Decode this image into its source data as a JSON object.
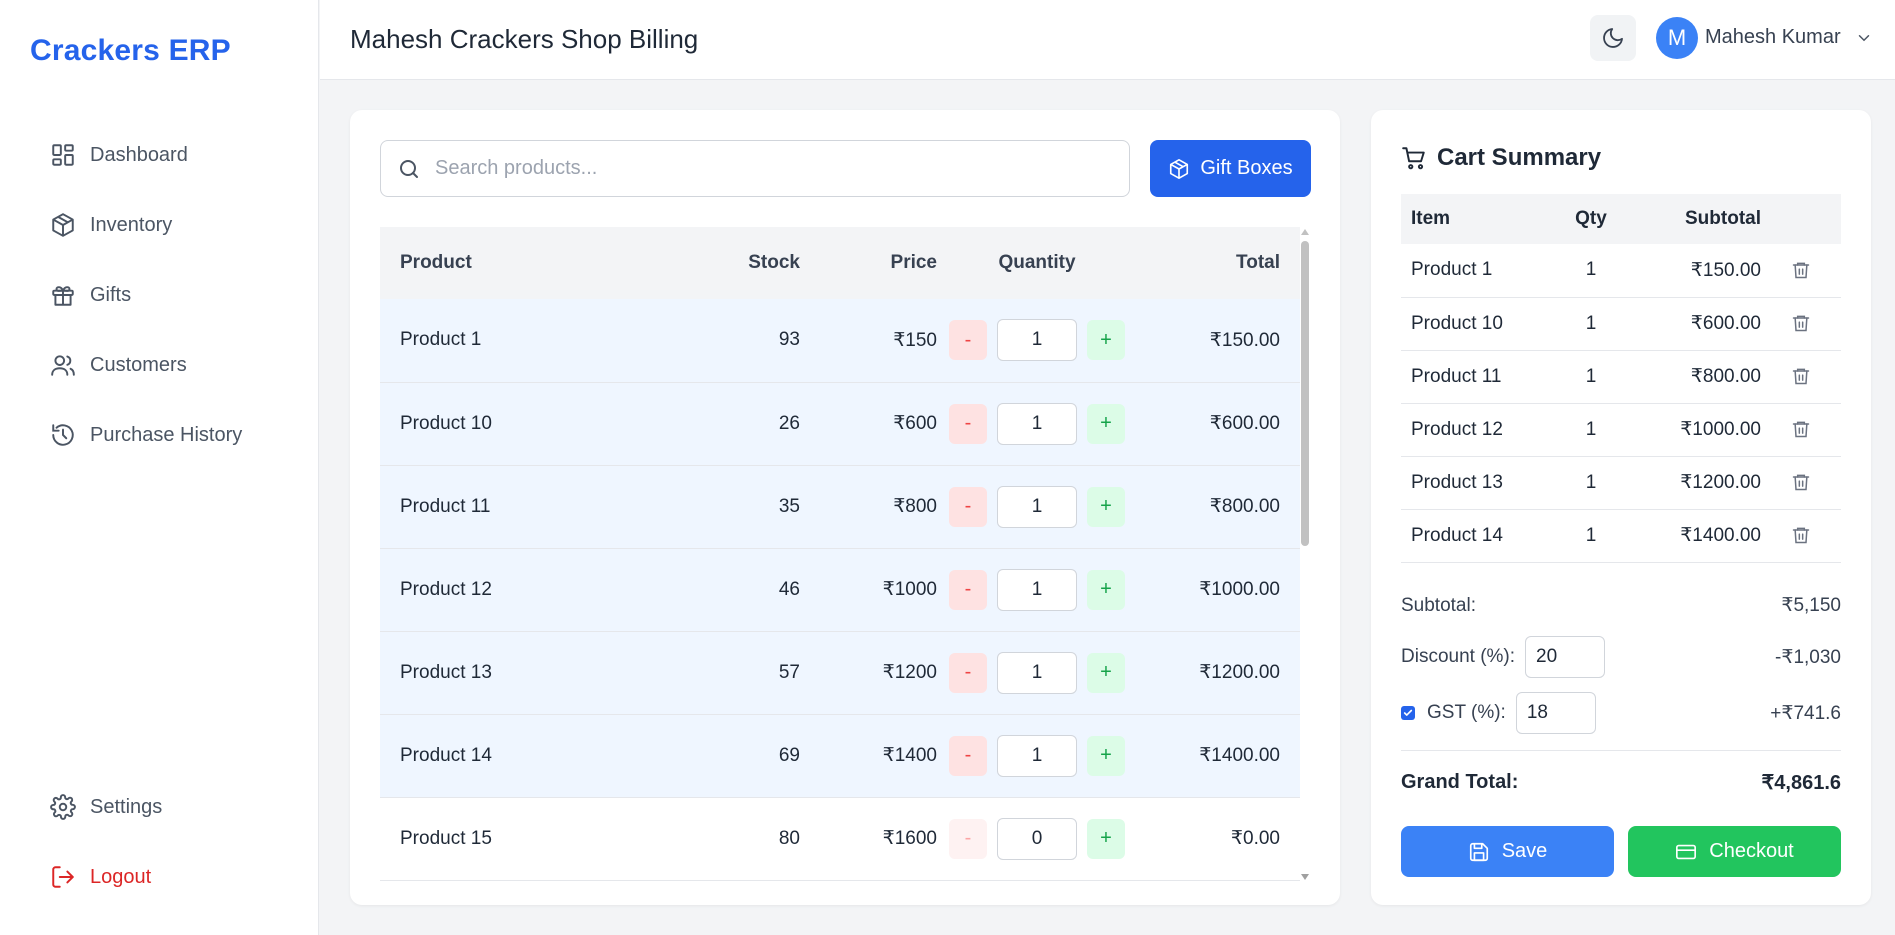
{
  "sidebar": {
    "brand": "Crackers ERP",
    "items": [
      {
        "label": "Dashboard",
        "icon": "dashboard-icon"
      },
      {
        "label": "Inventory",
        "icon": "box-icon"
      },
      {
        "label": "Gifts",
        "icon": "gift-icon"
      },
      {
        "label": "Customers",
        "icon": "users-icon"
      },
      {
        "label": "Purchase History",
        "icon": "history-icon"
      }
    ],
    "bottom": [
      {
        "label": "Settings",
        "icon": "gear-icon"
      },
      {
        "label": "Logout",
        "icon": "logout-icon"
      }
    ]
  },
  "header": {
    "title": "Mahesh Crackers Shop Billing",
    "avatar_initial": "M",
    "user_name": "Mahesh Kumar"
  },
  "products": {
    "search_placeholder": "Search products...",
    "gift_button": "Gift Boxes",
    "columns": [
      "Product",
      "Stock",
      "Price",
      "Quantity",
      "Total"
    ],
    "rows": [
      {
        "name": "Product 1",
        "stock": "93",
        "price": "₹150",
        "qty": "1",
        "total": "₹150.00",
        "in_cart": true
      },
      {
        "name": "Product 10",
        "stock": "26",
        "price": "₹600",
        "qty": "1",
        "total": "₹600.00",
        "in_cart": true
      },
      {
        "name": "Product 11",
        "stock": "35",
        "price": "₹800",
        "qty": "1",
        "total": "₹800.00",
        "in_cart": true
      },
      {
        "name": "Product 12",
        "stock": "46",
        "price": "₹1000",
        "qty": "1",
        "total": "₹1000.00",
        "in_cart": true
      },
      {
        "name": "Product 13",
        "stock": "57",
        "price": "₹1200",
        "qty": "1",
        "total": "₹1200.00",
        "in_cart": true
      },
      {
        "name": "Product 14",
        "stock": "69",
        "price": "₹1400",
        "qty": "1",
        "total": "₹1400.00",
        "in_cart": true
      },
      {
        "name": "Product 15",
        "stock": "80",
        "price": "₹1600",
        "qty": "0",
        "total": "₹0.00",
        "in_cart": false
      }
    ],
    "minus_label": "-",
    "plus_label": "+"
  },
  "cart": {
    "title": "Cart Summary",
    "columns": [
      "Item",
      "Qty",
      "Subtotal"
    ],
    "items": [
      {
        "name": "Product 1",
        "qty": "1",
        "subtotal": "₹150.00"
      },
      {
        "name": "Product 10",
        "qty": "1",
        "subtotal": "₹600.00"
      },
      {
        "name": "Product 11",
        "qty": "1",
        "subtotal": "₹800.00"
      },
      {
        "name": "Product 12",
        "qty": "1",
        "subtotal": "₹1000.00"
      },
      {
        "name": "Product 13",
        "qty": "1",
        "subtotal": "₹1200.00"
      },
      {
        "name": "Product 14",
        "qty": "1",
        "subtotal": "₹1400.00"
      }
    ],
    "subtotal_label": "Subtotal:",
    "subtotal_value": "₹5,150",
    "discount_label": "Discount (%):",
    "discount_input": "20",
    "discount_value": "-₹1,030",
    "gst_checked": true,
    "gst_label": "GST (%):",
    "gst_input": "18",
    "gst_value": "+₹741.6",
    "grand_label": "Grand Total:",
    "grand_value": "₹4,861.6",
    "save_label": "Save",
    "checkout_label": "Checkout"
  },
  "colors": {
    "brand": "#2563eb",
    "save": "#3b82f6",
    "checkout": "#22c55e",
    "logout": "#dc2626"
  }
}
